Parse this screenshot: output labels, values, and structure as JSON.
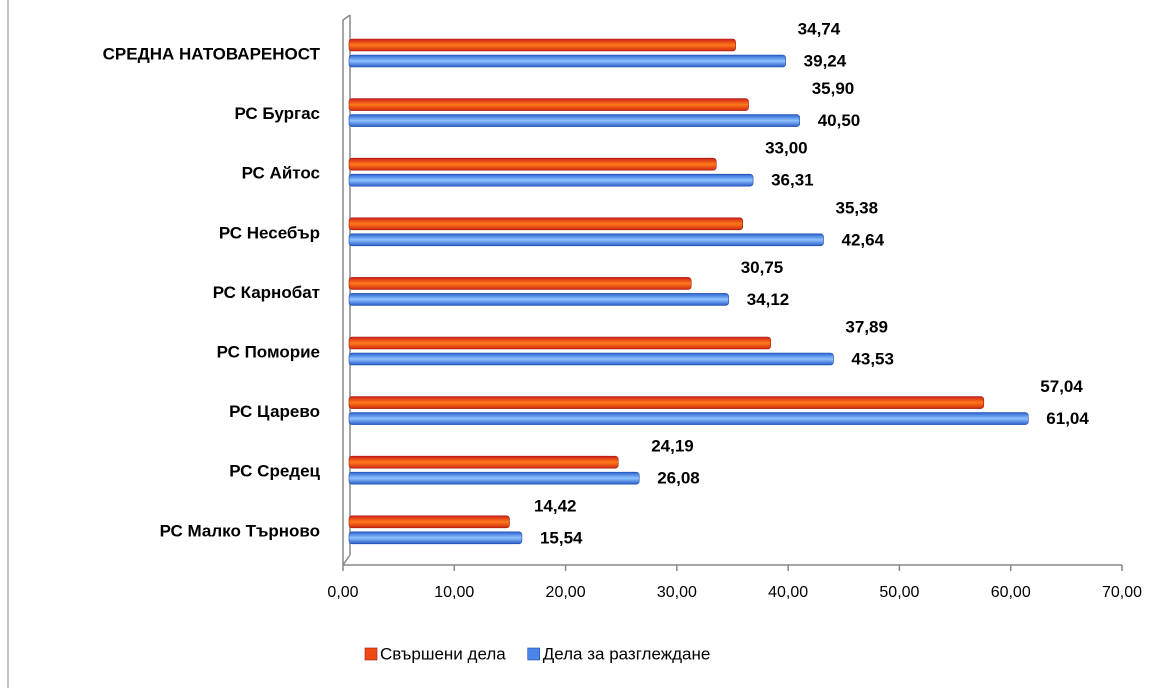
{
  "chart_data": {
    "type": "bar",
    "orientation": "horizontal",
    "categories": [
      "СРЕДНА НАТОВАРЕНОСТ",
      "РС Бургас",
      "РС Айтос",
      "РС Несебър",
      "РС Карнобат",
      "РС Поморие",
      "РС Царево",
      "РС Средец",
      "РС Малко Търново"
    ],
    "series": [
      {
        "name": "Свършени дела",
        "color": "#f04a14",
        "values": [
          34.74,
          35.9,
          33.0,
          35.38,
          30.75,
          37.89,
          57.04,
          24.19,
          14.42
        ],
        "value_labels": [
          "34,74",
          "35,90",
          "33,00",
          "35,38",
          "30,75",
          "37,89",
          "57,04",
          "24,19",
          "14,42"
        ]
      },
      {
        "name": "Дела за разглеждане",
        "color": "#4a86e8",
        "values": [
          39.24,
          40.5,
          36.31,
          42.64,
          34.12,
          43.53,
          61.04,
          26.08,
          15.54
        ],
        "value_labels": [
          "39,24",
          "40,50",
          "36,31",
          "42,64",
          "34,12",
          "43,53",
          "61,04",
          "26,08",
          "15,54"
        ]
      }
    ],
    "xlim": [
      0,
      70
    ],
    "xticks": [
      {
        "value": 0,
        "label": "0,00"
      },
      {
        "value": 10,
        "label": "10,00"
      },
      {
        "value": 20,
        "label": "20,00"
      },
      {
        "value": 30,
        "label": "30,00"
      },
      {
        "value": 40,
        "label": "40,00"
      },
      {
        "value": 50,
        "label": "50,00"
      },
      {
        "value": 60,
        "label": "60,00"
      },
      {
        "value": 70,
        "label": "70,00"
      }
    ],
    "legend": "bottom"
  }
}
